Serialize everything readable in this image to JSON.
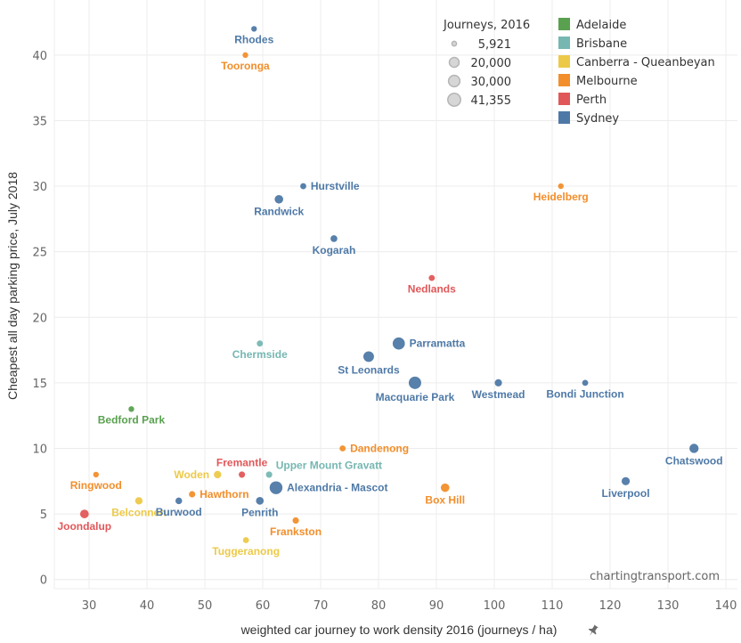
{
  "chart_data": {
    "type": "scatter",
    "title": "",
    "xlabel": "weighted car journey to work density 2016 (journeys / ha)",
    "ylabel": "Cheapest all day parking price, July 2018",
    "xlim": [
      24,
      142
    ],
    "ylim": [
      -0.7,
      44.2
    ],
    "x_ticks": [
      30,
      40,
      50,
      60,
      70,
      80,
      90,
      100,
      110,
      120,
      130,
      140
    ],
    "y_ticks": [
      0,
      5,
      10,
      15,
      20,
      25,
      30,
      35,
      40
    ],
    "grid": true,
    "watermark": "chartingtransport.com",
    "pin_icon": "pin-icon",
    "color_legend": {
      "placement": "top-right",
      "items": [
        {
          "name": "Adelaide",
          "color": "#59a14f"
        },
        {
          "name": "Brisbane",
          "color": "#76b7b2"
        },
        {
          "name": "Canberra - Queanbeyan",
          "color": "#edc948"
        },
        {
          "name": "Melbourne",
          "color": "#f28e2b"
        },
        {
          "name": "Perth",
          "color": "#e15759"
        },
        {
          "name": "Sydney",
          "color": "#4e79a7"
        }
      ]
    },
    "size_legend": {
      "title": "Journeys, 2016",
      "placement": "top-right",
      "items": [
        {
          "label": "5,921",
          "value": 5921
        },
        {
          "label": "20,000",
          "value": 20000
        },
        {
          "label": "30,000",
          "value": 30000
        },
        {
          "label": "41,355",
          "value": 41355
        }
      ]
    },
    "points": [
      {
        "name": "Rhodes",
        "city": "Sydney",
        "x": 58.5,
        "y": 42,
        "size": 6500,
        "label_pos": "below"
      },
      {
        "name": "Tooronga",
        "city": "Melbourne",
        "x": 57,
        "y": 40,
        "size": 6500,
        "label_pos": "below"
      },
      {
        "name": "Hurstville",
        "city": "Sydney",
        "x": 67,
        "y": 30,
        "size": 7000,
        "label_pos": "right"
      },
      {
        "name": "Randwick",
        "city": "Sydney",
        "x": 62.8,
        "y": 29,
        "size": 14000,
        "label_pos": "below"
      },
      {
        "name": "Heidelberg",
        "city": "Melbourne",
        "x": 111.5,
        "y": 30,
        "size": 6500,
        "label_pos": "below"
      },
      {
        "name": "Kogarah",
        "city": "Sydney",
        "x": 72.3,
        "y": 26,
        "size": 8500,
        "label_pos": "below"
      },
      {
        "name": "Nedlands",
        "city": "Perth",
        "x": 89.2,
        "y": 23,
        "size": 7000,
        "label_pos": "below"
      },
      {
        "name": "Chermside",
        "city": "Brisbane",
        "x": 59.5,
        "y": 18,
        "size": 7000,
        "label_pos": "below"
      },
      {
        "name": "Parramatta",
        "city": "Sydney",
        "x": 83.5,
        "y": 18,
        "size": 36000,
        "label_pos": "right"
      },
      {
        "name": "St Leonards",
        "city": "Sydney",
        "x": 78.3,
        "y": 17,
        "size": 25000,
        "label_pos": "below"
      },
      {
        "name": "Macquarie Park",
        "city": "Sydney",
        "x": 86.3,
        "y": 15,
        "size": 38000,
        "label_pos": "below"
      },
      {
        "name": "Westmead",
        "city": "Sydney",
        "x": 100.7,
        "y": 15,
        "size": 9500,
        "label_pos": "below"
      },
      {
        "name": "Bondi Junction",
        "city": "Sydney",
        "x": 115.7,
        "y": 15,
        "size": 7000,
        "label_pos": "below"
      },
      {
        "name": "Bedford Park",
        "city": "Adelaide",
        "x": 37.3,
        "y": 13,
        "size": 6500,
        "label_pos": "below"
      },
      {
        "name": "Chatswood",
        "city": "Sydney",
        "x": 134.5,
        "y": 10,
        "size": 17000,
        "label_pos": "below"
      },
      {
        "name": "Dandenong",
        "city": "Melbourne",
        "x": 73.8,
        "y": 10,
        "size": 7000,
        "label_pos": "right"
      },
      {
        "name": "Ringwood",
        "city": "Melbourne",
        "x": 31.2,
        "y": 8,
        "size": 6500,
        "label_pos": "below"
      },
      {
        "name": "Woden",
        "city": "Canberra - Queanbeyan",
        "x": 52.2,
        "y": 8,
        "size": 10000,
        "label_pos": "left"
      },
      {
        "name": "Fremantle",
        "city": "Perth",
        "x": 56.4,
        "y": 8,
        "size": 7500,
        "label_pos": "above"
      },
      {
        "name": "Upper Mount Gravatt",
        "city": "Brisbane",
        "x": 61.1,
        "y": 8,
        "size": 7500,
        "label_pos": "above-right"
      },
      {
        "name": "Alexandria - Mascot",
        "city": "Sydney",
        "x": 62.3,
        "y": 7,
        "size": 41355,
        "label_pos": "right"
      },
      {
        "name": "Box Hill",
        "city": "Melbourne",
        "x": 91.5,
        "y": 7,
        "size": 14000,
        "label_pos": "below"
      },
      {
        "name": "Liverpool",
        "city": "Sydney",
        "x": 122.7,
        "y": 7.5,
        "size": 12500,
        "label_pos": "below"
      },
      {
        "name": "Hawthorn",
        "city": "Melbourne",
        "x": 47.8,
        "y": 6.5,
        "size": 7500,
        "label_pos": "right"
      },
      {
        "name": "Belconnen",
        "city": "Canberra - Queanbeyan",
        "x": 38.6,
        "y": 6,
        "size": 10000,
        "label_pos": "below"
      },
      {
        "name": "Burwood",
        "city": "Sydney",
        "x": 45.5,
        "y": 6,
        "size": 8000,
        "label_pos": "below"
      },
      {
        "name": "Penrith",
        "city": "Sydney",
        "x": 59.5,
        "y": 6,
        "size": 11000,
        "label_pos": "below"
      },
      {
        "name": "Joondalup",
        "city": "Perth",
        "x": 29.2,
        "y": 5,
        "size": 14500,
        "label_pos": "below"
      },
      {
        "name": "Frankston",
        "city": "Melbourne",
        "x": 65.7,
        "y": 4.5,
        "size": 7500,
        "label_pos": "below"
      },
      {
        "name": "Tuggeranong",
        "city": "Canberra - Queanbeyan",
        "x": 57.1,
        "y": 3,
        "size": 7000,
        "label_pos": "below"
      }
    ]
  }
}
